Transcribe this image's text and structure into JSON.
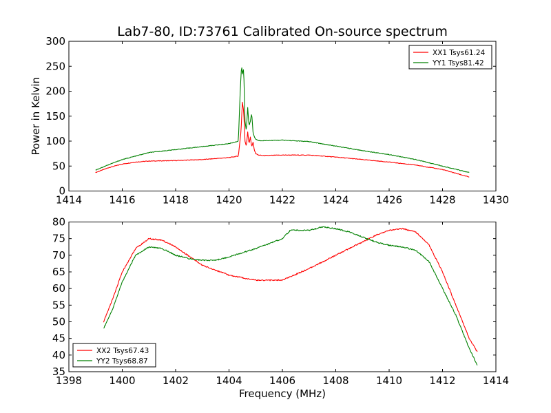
{
  "figure": {
    "title": "Lab7-80, ID:73761 Calibrated On-source spectrum"
  },
  "chart_data": [
    {
      "type": "line",
      "ylabel": "Power in Kelvin",
      "xlabel": "",
      "xlim": [
        1414,
        1430
      ],
      "ylim": [
        0,
        300
      ],
      "xticks": [
        1414,
        1416,
        1418,
        1420,
        1422,
        1424,
        1426,
        1428,
        1430
      ],
      "yticks": [
        0,
        50,
        100,
        150,
        200,
        250,
        300
      ],
      "legend_position": "upper right",
      "series": [
        {
          "name": "XX1 Tsys61.24",
          "color": "#ff0000",
          "x": [
            1415,
            1415.5,
            1416,
            1416.5,
            1417,
            1418,
            1419,
            1420,
            1420.35,
            1420.45,
            1420.5,
            1420.55,
            1420.6,
            1420.65,
            1420.7,
            1420.75,
            1420.8,
            1420.85,
            1420.9,
            1420.95,
            1421.0,
            1421.1,
            1421.3,
            1422,
            1423,
            1424,
            1425,
            1426,
            1427,
            1428,
            1429
          ],
          "y": [
            37,
            47,
            54,
            58,
            60,
            61,
            63,
            67,
            70,
            120,
            178,
            160,
            100,
            90,
            118,
            95,
            108,
            88,
            98,
            82,
            75,
            72,
            71,
            72,
            72,
            68,
            63,
            58,
            52,
            43,
            28
          ]
        },
        {
          "name": "YY1 Tsys81.42",
          "color": "#008000",
          "x": [
            1415,
            1415.5,
            1416,
            1416.5,
            1417,
            1418,
            1419,
            1420,
            1420.35,
            1420.42,
            1420.47,
            1420.5,
            1420.55,
            1420.6,
            1420.65,
            1420.7,
            1420.75,
            1420.8,
            1420.85,
            1420.9,
            1420.95,
            1421.0,
            1421.1,
            1421.3,
            1422,
            1423,
            1424,
            1425,
            1426,
            1427,
            1428,
            1429
          ],
          "y": [
            42,
            53,
            63,
            70,
            77,
            83,
            89,
            95,
            100,
            200,
            252,
            235,
            245,
            140,
            120,
            168,
            130,
            140,
            156,
            118,
            108,
            104,
            101,
            101,
            102,
            99,
            90,
            81,
            73,
            63,
            50,
            37
          ]
        }
      ]
    },
    {
      "type": "line",
      "ylabel": "",
      "xlabel": "Frequency (MHz)",
      "xlim": [
        1398,
        1414
      ],
      "ylim": [
        35,
        80
      ],
      "xticks": [
        1398,
        1400,
        1402,
        1404,
        1406,
        1408,
        1410,
        1412,
        1414
      ],
      "yticks": [
        35,
        40,
        45,
        50,
        55,
        60,
        65,
        70,
        75,
        80
      ],
      "legend_position": "lower left",
      "series": [
        {
          "name": "XX2 Tsys67.43",
          "color": "#ff0000",
          "x": [
            1399.3,
            1399.6,
            1400,
            1400.5,
            1401,
            1401.5,
            1402,
            1403,
            1404,
            1405,
            1406,
            1407,
            1408,
            1409,
            1409.5,
            1410,
            1410.5,
            1411,
            1411.5,
            1412,
            1412.5,
            1413,
            1413.3
          ],
          "y": [
            50,
            56,
            65,
            72,
            75,
            74.5,
            72.5,
            67,
            64,
            62.5,
            62.5,
            66,
            70,
            74,
            76,
            77.5,
            78,
            77,
            73,
            65,
            55,
            45,
            41
          ]
        },
        {
          "name": "YY2 Tsys68.87",
          "color": "#008000",
          "x": [
            1399.3,
            1399.6,
            1400,
            1400.5,
            1401,
            1401.5,
            1402,
            1402.5,
            1403,
            1403.5,
            1404,
            1405,
            1406,
            1406.3,
            1407,
            1407.5,
            1408,
            1408.5,
            1409,
            1409.5,
            1410,
            1410.5,
            1411,
            1411.5,
            1412,
            1412.5,
            1413,
            1413.3
          ],
          "y": [
            48,
            53,
            62,
            70,
            72.5,
            72,
            70,
            69,
            68.5,
            68.5,
            69.5,
            72,
            75,
            77.5,
            77.5,
            78.5,
            78,
            77,
            75.5,
            74,
            73,
            72.5,
            71.5,
            68,
            60,
            52,
            42,
            37
          ]
        }
      ]
    }
  ]
}
